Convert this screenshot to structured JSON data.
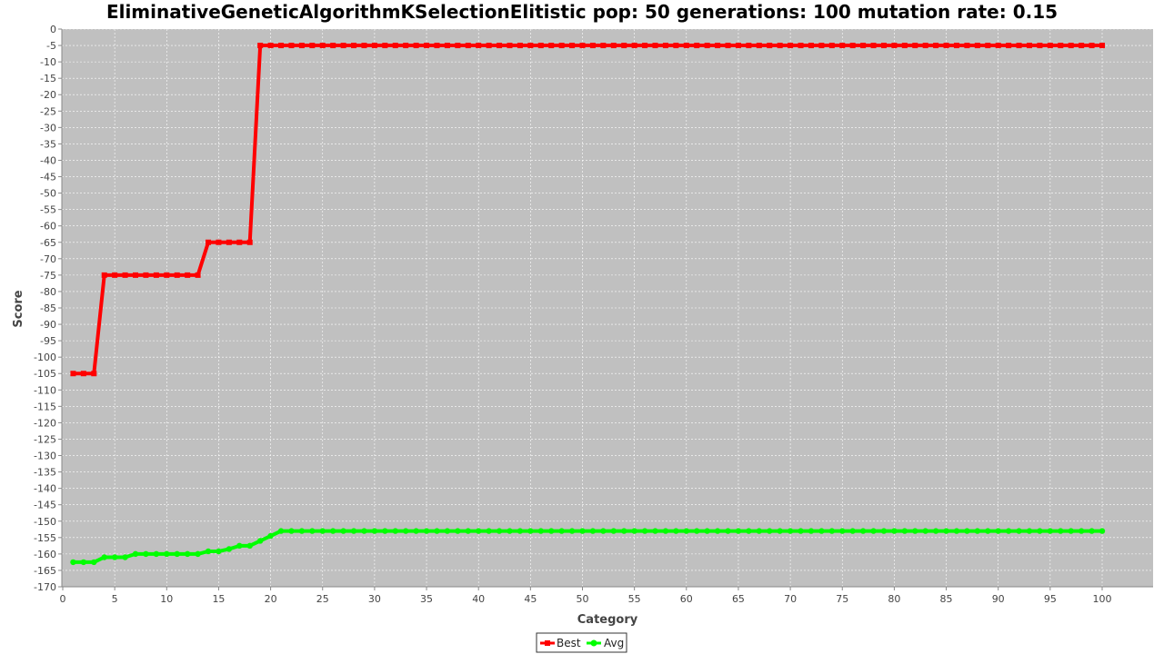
{
  "chart_data": {
    "type": "line",
    "title": "EliminativeGeneticAlgorithmKSelectionElitistic pop: 50 generations: 100 mutation rate: 0.15",
    "xlabel": "Category",
    "ylabel": "Score",
    "ylim": [
      -170,
      0
    ],
    "y_tick_step": 5,
    "x_categories": "1..100",
    "x_tick_labels": [
      "0",
      "5",
      "10",
      "15",
      "20",
      "25",
      "30",
      "35",
      "40",
      "45",
      "50",
      "55",
      "60",
      "65",
      "70",
      "75",
      "80",
      "85",
      "90",
      "95",
      "100"
    ],
    "grid": true,
    "legend_position": "bottom-center",
    "plot_background": "#c0c0c0",
    "series": [
      {
        "name": "Best",
        "color": "#ff0000",
        "marker": "square",
        "segments": [
          {
            "from": 1,
            "to": 3,
            "value": -105
          },
          {
            "from": 4,
            "to": 13,
            "value": -75
          },
          {
            "from": 14,
            "to": 18,
            "value": -65
          },
          {
            "from": 19,
            "to": 100,
            "value": -5
          }
        ]
      },
      {
        "name": "Avg",
        "color": "#00ff00",
        "marker": "circle",
        "values_head": [
          -162.5,
          -162.5,
          -162.5,
          -161,
          -161,
          -161,
          -160,
          -160,
          -160,
          -160,
          -160,
          -160,
          -160,
          -159.2,
          -159.2,
          -158.5,
          -157.5,
          -157.5,
          -156,
          -154.5
        ],
        "tail_from": 21,
        "tail_value": -153
      }
    ]
  }
}
